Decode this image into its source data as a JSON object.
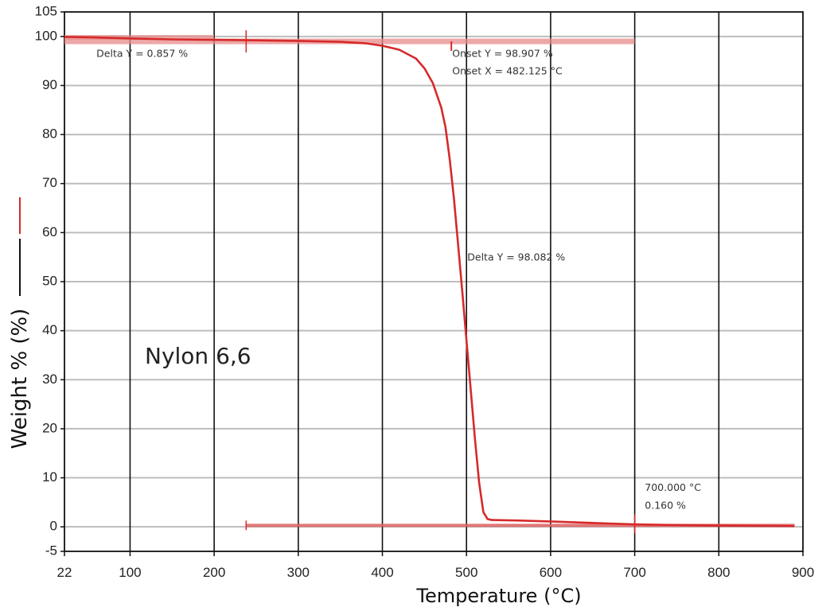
{
  "chart_data": {
    "type": "line",
    "xlabel": "Temperature (°C)",
    "ylabel": "Weight % (%)",
    "sample_label": "Nylon 6,6",
    "xlim": [
      22,
      900
    ],
    "ylim": [
      -5,
      105
    ],
    "grid": true,
    "x_ticks": [
      "22",
      "100",
      "200",
      "300",
      "400",
      "500",
      "600",
      "700",
      "800",
      "900"
    ],
    "x_tick_values": [
      22,
      100,
      200,
      300,
      400,
      500,
      600,
      700,
      800,
      900
    ],
    "y_ticks": [
      "105",
      "100",
      "90",
      "80",
      "70",
      "60",
      "50",
      "40",
      "30",
      "20",
      "10",
      "0",
      "-5"
    ],
    "y_tick_values": [
      105,
      100,
      90,
      80,
      70,
      60,
      50,
      40,
      30,
      20,
      10,
      0,
      -5
    ],
    "series": [
      {
        "color": "#d62a2a",
        "x": [
          22,
          60,
          100,
          150,
          200,
          250,
          300,
          350,
          380,
          400,
          420,
          440,
          450,
          460,
          470,
          475,
          480,
          485,
          490,
          495,
          500,
          505,
          510,
          515,
          520,
          525,
          530,
          560,
          600,
          650,
          700,
          750,
          800,
          850,
          890
        ],
        "y": [
          99.9,
          99.8,
          99.6,
          99.4,
          99.3,
          99.2,
          99.1,
          98.9,
          98.6,
          98.1,
          97.3,
          95.5,
          93.5,
          90.5,
          85.5,
          81.5,
          75.0,
          67.0,
          57.5,
          48.0,
          38.0,
          28.0,
          18.0,
          9.0,
          3.0,
          1.6,
          1.4,
          1.3,
          1.1,
          0.8,
          0.5,
          0.35,
          0.25,
          0.2,
          0.16
        ]
      }
    ],
    "annotations": [
      {
        "text": "Delta Y = 0.857 %",
        "x": 60,
        "y": 95.8
      },
      {
        "text": "Onset Y = 98.907 %",
        "x": 483,
        "y": 95.8
      },
      {
        "text": "Onset X = 482.125 °C",
        "x": 483,
        "y": 92.3
      },
      {
        "text": "Delta Y = 98.082 %",
        "x": 501,
        "y": 54.3
      },
      {
        "text": "700.000 °C",
        "x": 712,
        "y": 7.3
      },
      {
        "text": "0.160 %",
        "x": 712,
        "y": 3.7
      }
    ],
    "markers": {
      "top_step": {
        "x_start": 22,
        "x_end": 700,
        "y": 99.0,
        "drop_x": 482
      },
      "bottom_step": {
        "x_start": 238,
        "x_end": 890,
        "y": 0.3
      },
      "delta_left": {
        "x_start": 22,
        "x_end": 200,
        "y": 99.8
      }
    }
  }
}
